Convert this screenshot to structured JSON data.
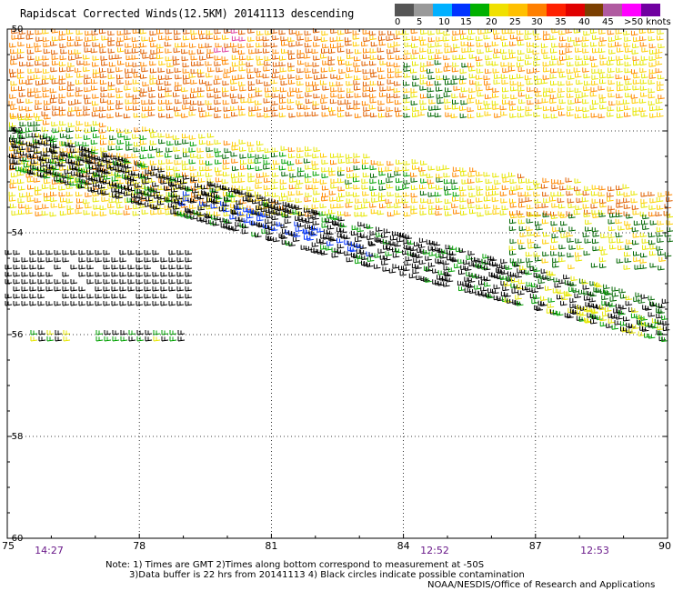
{
  "title": "Rapidscat Corrected Winds(12.5KM) 20141113 descending",
  "legend": {
    "swatches": [
      "#555555",
      "#999999",
      "#00b0ff",
      "#0033ff",
      "#00b000",
      "#f0e000",
      "#ffc000",
      "#ff7f00",
      "#ff2000",
      "#e00000",
      "#7b3f00",
      "#b05aa0",
      "#ff00ff",
      "#7000a0"
    ],
    "labels": [
      "0",
      "5",
      "10",
      "15",
      "20",
      "25",
      "30",
      "35",
      "40",
      "45",
      ">50 knots"
    ]
  },
  "lat_labels": [
    "-50",
    "-52",
    "-54",
    "-56",
    "-58",
    "-60"
  ],
  "lon_labels": [
    "75",
    "78",
    "81",
    "84",
    "87",
    "90"
  ],
  "time_labels": [
    "14:27",
    "12:52",
    "12:53"
  ],
  "notes": {
    "line1": "Note: 1) Times are GMT 2)Times along bottom correspond to measurement at -50S",
    "line2": "3)Data buffer is 22 hrs from 20141113 4) Black circles indicate possible contamination",
    "credit": "NOAA/NESDIS/Office of Research and Applications"
  },
  "map": {
    "lon_range": [
      75,
      90
    ],
    "lat_range": [
      -50,
      -60
    ],
    "grid": true,
    "wind_speed_colors": {
      "black": "#000000",
      "blue": "#0033ff",
      "green": "#00a000",
      "darkgreen": "#006600",
      "yellow": "#e6e600",
      "gold": "#ffcc00",
      "orange": "#ff8800",
      "darkorange": "#e06000",
      "red": "#ff2020",
      "magenta": "#e040a0"
    }
  }
}
